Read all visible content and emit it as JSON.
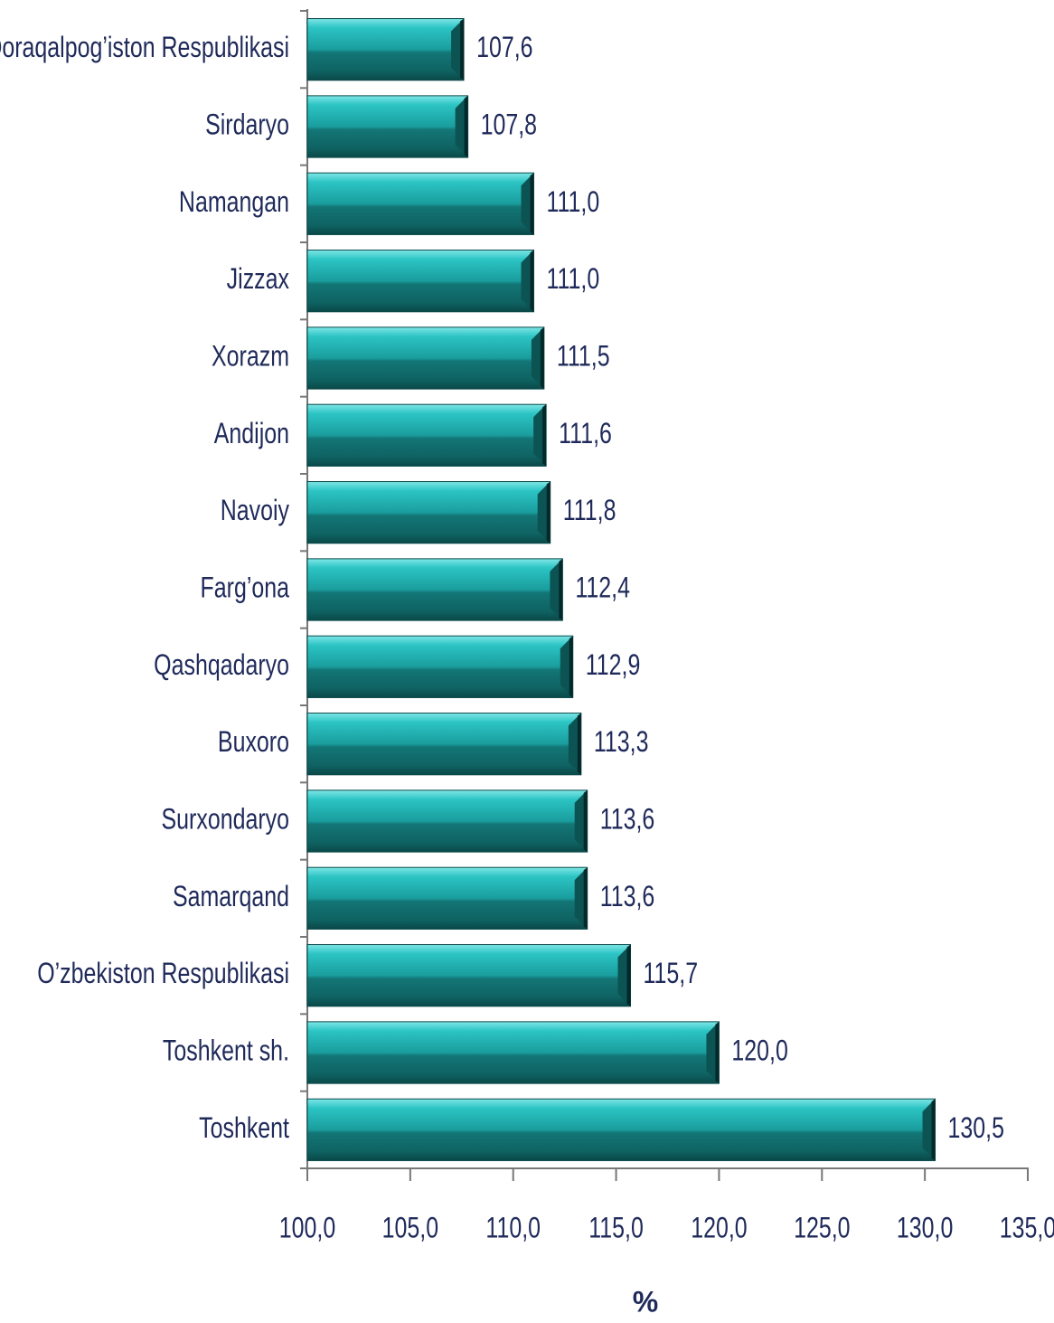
{
  "chart_data": {
    "type": "barh",
    "categories": [
      "Qoraqalpog’iston Respublikasi",
      "Sirdaryo",
      "Namangan",
      "Jizzax",
      "Xorazm",
      "Andijon",
      "Navoiy",
      "Farg’ona",
      "Qashqadaryo",
      "Buxoro",
      "Surxondaryo",
      "Samarqand",
      "O’zbekiston Respublikasi",
      "Toshkent sh.",
      "Toshkent"
    ],
    "values": [
      107.6,
      107.8,
      111.0,
      111.0,
      111.5,
      111.6,
      111.8,
      112.4,
      112.9,
      113.3,
      113.6,
      113.6,
      115.7,
      120.0,
      130.5
    ],
    "value_labels": [
      "107,6",
      "107,8",
      "111,0",
      "111,0",
      "111,5",
      "111,6",
      "111,8",
      "112,4",
      "112,9",
      "113,3",
      "113,6",
      "113,6",
      "115,7",
      "120,0",
      "130,5"
    ],
    "color": "#1fb5b5",
    "xlim": [
      100,
      135
    ],
    "xticks": [
      {
        "value": 100,
        "label": "100,0"
      },
      {
        "value": 105,
        "label": "105,0"
      },
      {
        "value": 110,
        "label": "110,0"
      },
      {
        "value": 115,
        "label": "115,0"
      },
      {
        "value": 120,
        "label": "120,0"
      },
      {
        "value": 125,
        "label": "125,0"
      },
      {
        "value": 130,
        "label": "130,0"
      },
      {
        "value": 135,
        "label": "135,0"
      }
    ],
    "x_label": "%"
  }
}
